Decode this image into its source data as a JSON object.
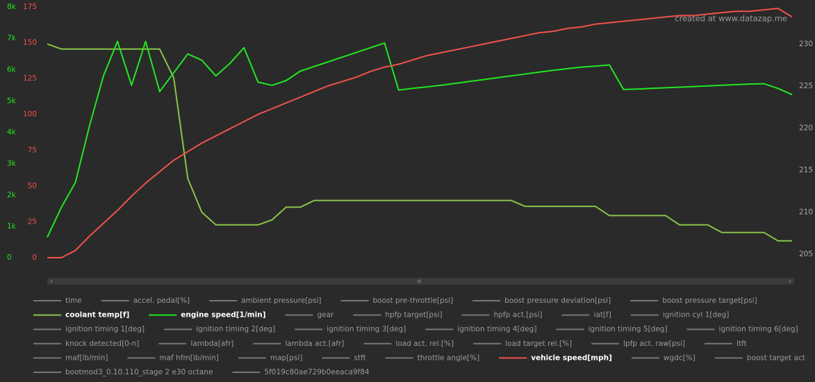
{
  "chart_data": {
    "type": "line",
    "watermark": "created at www.datazap.me",
    "ylim": [
      0,
      8000
    ],
    "yticks": [
      0,
      {
        "value": 1000,
        "label": "1k"
      },
      {
        "value": 2000,
        "label": "2k"
      },
      {
        "value": 3000,
        "label": "3k"
      },
      {
        "value": 4000,
        "label": "4k"
      },
      {
        "value": 5000,
        "label": "5k"
      },
      {
        "value": 6000,
        "label": "6k"
      },
      {
        "value": 7000,
        "label": "7k"
      },
      {
        "value": 8000,
        "label": "8k"
      }
    ],
    "y2lim": [
      0,
      175
    ],
    "y2ticks": [
      0,
      25,
      50,
      75,
      100,
      125,
      150,
      175
    ],
    "y3lim": [
      204.6,
      234.4
    ],
    "y3ticks": [
      205,
      210,
      215,
      220,
      225,
      230
    ],
    "series": [
      {
        "name": "time",
        "visible": false
      },
      {
        "name": "accel. pedal[%]",
        "visible": false
      },
      {
        "name": "ambient pressure[psi]",
        "visible": false
      },
      {
        "name": "boost pre-throttle[psi]",
        "visible": false
      },
      {
        "name": "boost pressure deviation[psi]",
        "visible": false
      },
      {
        "name": "boost pressure target[psi]",
        "visible": false
      },
      {
        "name": "coolant temp[f]",
        "visible": true,
        "axis": "y3",
        "color": "#8bc34a",
        "values": [
          230.0,
          229.4,
          229.4,
          229.4,
          229.4,
          229.4,
          229.4,
          229.4,
          229.4,
          226.0,
          214.0,
          210.0,
          208.5,
          208.5,
          208.5,
          208.5,
          209.1,
          210.6,
          210.6,
          211.4,
          211.4,
          211.4,
          211.4,
          211.4,
          211.4,
          211.4,
          211.4,
          211.4,
          211.4,
          211.4,
          211.4,
          211.4,
          211.4,
          211.4,
          210.7,
          210.7,
          210.7,
          210.7,
          210.7,
          210.7,
          209.6,
          209.6,
          209.6,
          209.6,
          209.6,
          208.5,
          208.5,
          208.5,
          207.6,
          207.6,
          207.6,
          207.6,
          206.6,
          206.6
        ]
      },
      {
        "name": "engine speed[1/min]",
        "visible": true,
        "axis": "y",
        "color": "#22e622",
        "values": [
          650,
          1600,
          2400,
          4200,
          5800,
          6900,
          5500,
          6900,
          5300,
          5900,
          6500,
          6300,
          5800,
          6200,
          6700,
          5600,
          5500,
          5650,
          5950,
          6100,
          6250,
          6400,
          6550,
          6700,
          6850,
          5350,
          5400,
          5450,
          5500,
          5560,
          5620,
          5680,
          5740,
          5800,
          5860,
          5920,
          5980,
          6030,
          6080,
          6110,
          6150,
          5370,
          5380,
          5400,
          5420,
          5440,
          5460,
          5480,
          5500,
          5520,
          5540,
          5550,
          5400,
          5200
        ]
      },
      {
        "name": "gear",
        "visible": false
      },
      {
        "name": "hpfp target[psi]",
        "visible": false
      },
      {
        "name": "hpfp act.[psi]",
        "visible": false
      },
      {
        "name": "iat[f]",
        "visible": false
      },
      {
        "name": "ignition cyl 1[deg]",
        "visible": false
      },
      {
        "name": "ignition timing 1[deg]",
        "visible": false
      },
      {
        "name": "ignition timing 2[deg]",
        "visible": false
      },
      {
        "name": "ignition timing 3[deg]",
        "visible": false
      },
      {
        "name": "ignition timing 4[deg]",
        "visible": false
      },
      {
        "name": "ignition timing 5[deg]",
        "visible": false
      },
      {
        "name": "ignition timing 6[deg]",
        "visible": false
      },
      {
        "name": "knock detected[0-n]",
        "visible": false
      },
      {
        "name": "lambda[afr]",
        "visible": false
      },
      {
        "name": "lambda act.[afr]",
        "visible": false
      },
      {
        "name": "load act. rel.[%]",
        "visible": false
      },
      {
        "name": "load target rel.[%]",
        "visible": false
      },
      {
        "name": "lpfp act. raw[psi]",
        "visible": false
      },
      {
        "name": "ltft",
        "visible": false
      },
      {
        "name": "maf[lb/min]",
        "visible": false
      },
      {
        "name": "maf hfm[lb/min]",
        "visible": false
      },
      {
        "name": "map[psi]",
        "visible": false
      },
      {
        "name": "stft",
        "visible": false
      },
      {
        "name": "throttle angle[%]",
        "visible": false
      },
      {
        "name": "vehicle speed[mph]",
        "visible": true,
        "axis": "y2",
        "color": "#f0524a",
        "values": [
          0,
          0,
          5,
          15,
          24,
          33,
          43,
          52,
          60,
          68,
          74,
          80,
          85,
          90,
          95,
          100,
          104,
          108,
          112,
          116,
          120,
          123,
          126,
          130,
          133,
          135,
          138,
          141,
          143,
          145,
          147,
          149,
          151,
          153,
          155,
          157,
          158,
          160,
          161,
          163,
          164,
          165,
          166,
          167,
          168,
          169,
          169,
          170,
          171,
          172,
          172,
          173,
          174,
          168
        ]
      },
      {
        "name": "wgdc[%]",
        "visible": false
      },
      {
        "name": "boost target act",
        "visible": false
      },
      {
        "name": "bootmod3_0.10.110_stage 2 e30 octane",
        "visible": false
      },
      {
        "name": "5f019c80ae729b0eeaca9f84",
        "visible": false
      }
    ]
  }
}
